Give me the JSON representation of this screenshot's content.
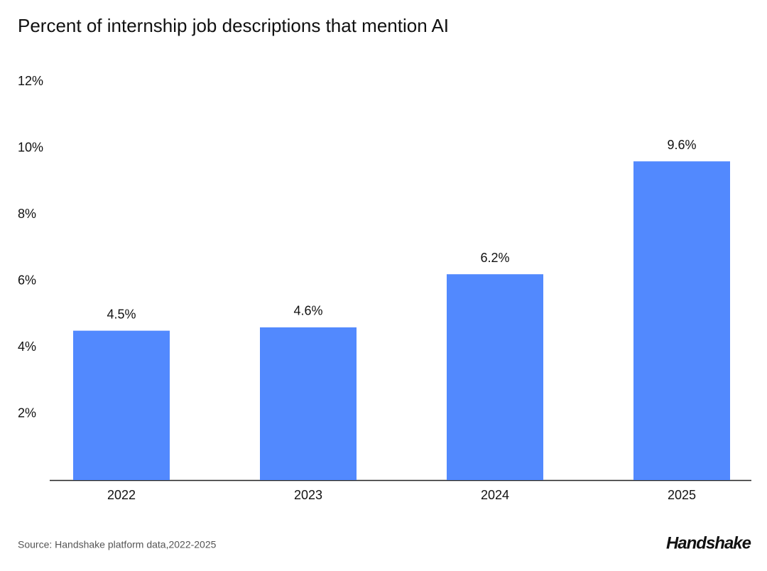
{
  "chart_data": {
    "type": "bar",
    "title": "Percent of internship job descriptions that mention AI",
    "categories": [
      "2022",
      "2023",
      "2024",
      "2025"
    ],
    "values": [
      4.5,
      4.6,
      6.2,
      9.6
    ],
    "value_labels": [
      "4.5%",
      "4.6%",
      "6.2%",
      "9.6%"
    ],
    "color": "#5289fe",
    "ylim": [
      0,
      12
    ],
    "yticks": [
      {
        "value": 2,
        "label": "2%"
      },
      {
        "value": 4,
        "label": "4%"
      },
      {
        "value": 6,
        "label": "6%"
      },
      {
        "value": 8,
        "label": "8%"
      },
      {
        "value": 10,
        "label": "10%"
      },
      {
        "value": 12,
        "label": "12%"
      }
    ],
    "grid": false,
    "source": "Source: Handshake platform data,2022-2025",
    "logo": "Handshake"
  }
}
